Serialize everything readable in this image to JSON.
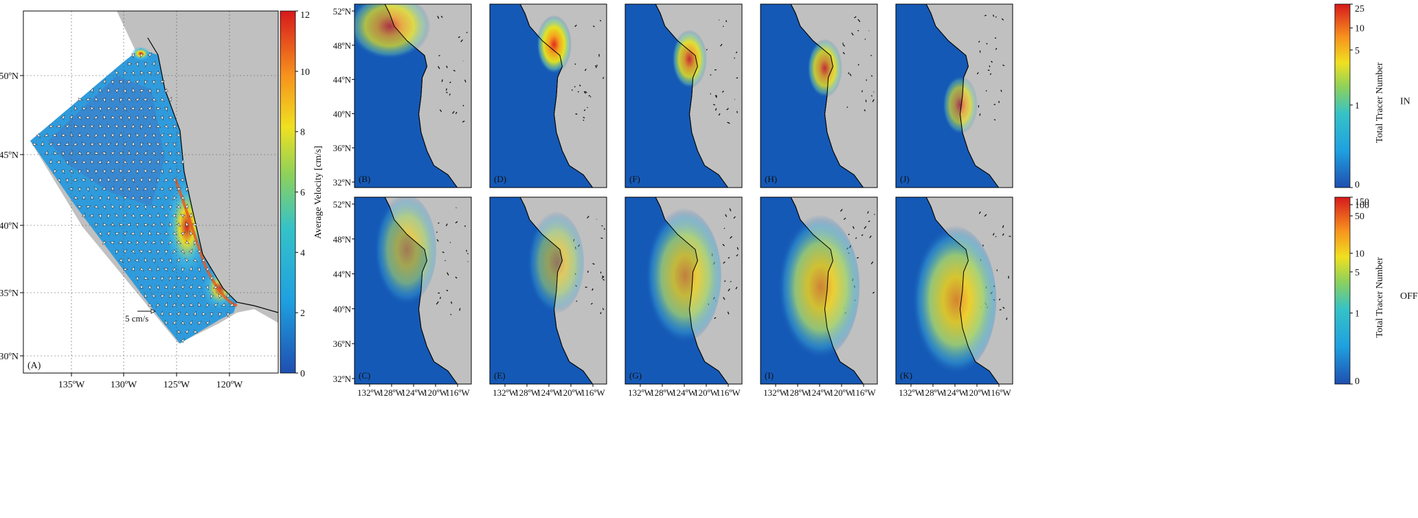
{
  "chart_data": [
    {
      "type": "heatmap",
      "id": "A",
      "panel_label": "(A)",
      "colorbar": {
        "label": "Average Velocity [cm/s]",
        "ticks": [
          "0",
          "2",
          "4",
          "6",
          "8",
          "10",
          "12"
        ],
        "range": [
          0,
          12
        ]
      },
      "x_ticks": [
        "135ºW",
        "130ºW",
        "125ºW",
        "120ºW"
      ],
      "y_ticks": [
        "50ºN",
        "45ºN",
        "40ºN",
        "35ºN",
        "30ºN"
      ],
      "x_range_deg": [
        -139,
        -117
      ],
      "y_range_deg": [
        29,
        55
      ],
      "scale_arrow_label": "5 cm/s",
      "colors": {
        "ocean_low": "#1f5fb6",
        "ocean_mid": "#46b6e2",
        "land": "#ffffff"
      }
    },
    {
      "type": "heatmap",
      "row": "IN",
      "panels": [
        "(B)",
        "(D)",
        "(F)",
        "(H)",
        "(J)"
      ],
      "colorbar": {
        "label": "Total Tracer Number",
        "ticks": [
          "0",
          "1",
          "5",
          "10",
          "25"
        ],
        "scale": "log"
      },
      "row_label": "IN",
      "y_ticks": [
        "52ºN",
        "48ºN",
        "44ºN",
        "40ºN",
        "36ºN",
        "32ºN"
      ],
      "plume_intensity": [
        0.55,
        0.95,
        0.75,
        0.7,
        0.45
      ]
    },
    {
      "type": "heatmap",
      "row": "OFF",
      "panels": [
        "(C)",
        "(E)",
        "(G)",
        "(I)",
        "(K)"
      ],
      "colorbar": {
        "label": "Total Tracer Number",
        "ticks": [
          "0",
          "1",
          "5",
          "10",
          "50",
          "100",
          "150"
        ],
        "scale": "log"
      },
      "row_label": "OFF",
      "y_ticks": [
        "52ºN",
        "48ºN",
        "44ºN",
        "40ºN",
        "36ºN",
        "32ºN"
      ],
      "x_ticks": [
        "132ºW",
        "128ºW",
        "124ºW",
        "120ºW",
        "116ºW"
      ],
      "plume_intensity": [
        0.4,
        0.3,
        0.65,
        0.75,
        0.8
      ]
    }
  ],
  "colors": {
    "ocean": "#1559b6",
    "land": "#c0c0c0",
    "coast": "#000000"
  }
}
